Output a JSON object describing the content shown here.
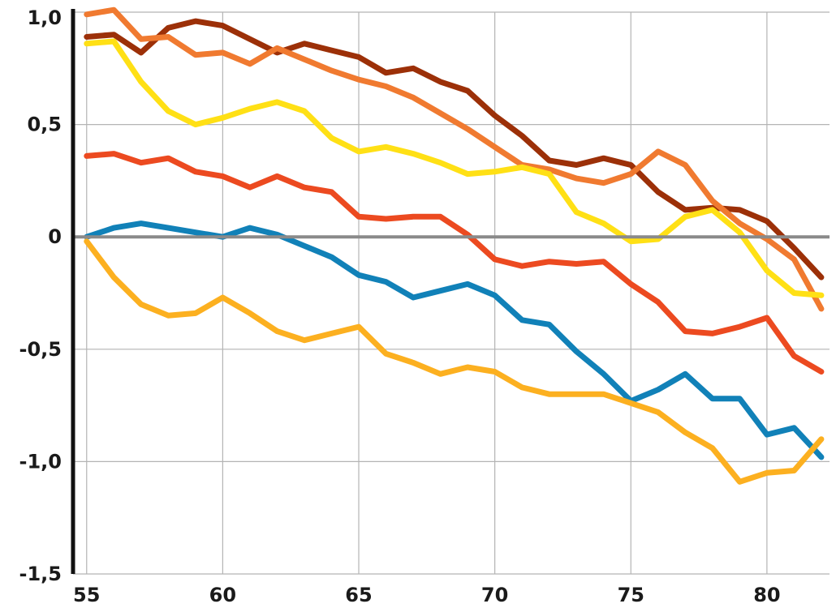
{
  "chart_data": {
    "type": "line",
    "title": "",
    "xlabel": "",
    "ylabel": "",
    "xlim": [
      54.5,
      82.3
    ],
    "ylim": [
      -1.5,
      1.0
    ],
    "grid": true,
    "legend": "none",
    "x_ticks": [
      55,
      60,
      65,
      70,
      75,
      80
    ],
    "x_tick_labels": [
      "55",
      "60",
      "65",
      "70",
      "75",
      "80"
    ],
    "y_ticks": [
      1.0,
      0.5,
      0,
      -0.5,
      -1.0,
      -1.5
    ],
    "y_tick_labels": [
      "1,0",
      "0,5",
      "0",
      "-0,5",
      "-1,0",
      "-1,5"
    ],
    "x": [
      55,
      56,
      57,
      58,
      59,
      60,
      61,
      62,
      63,
      64,
      65,
      66,
      67,
      68,
      69,
      70,
      71,
      72,
      73,
      74,
      75,
      76,
      77,
      78,
      79,
      80,
      81,
      82
    ],
    "series": [
      {
        "color": "#9c3008",
        "values": [
          0.89,
          0.9,
          0.82,
          0.93,
          0.96,
          0.94,
          0.88,
          0.82,
          0.86,
          0.83,
          0.8,
          0.73,
          0.75,
          0.69,
          0.65,
          0.54,
          0.45,
          0.34,
          0.32,
          0.35,
          0.32,
          0.2,
          0.12,
          0.13,
          0.12,
          0.07,
          -0.05,
          -0.18
        ]
      },
      {
        "color": "#f07a30",
        "values": [
          0.99,
          1.01,
          0.88,
          0.89,
          0.81,
          0.82,
          0.77,
          0.84,
          0.79,
          0.74,
          0.7,
          0.67,
          0.62,
          0.55,
          0.48,
          0.4,
          0.32,
          0.3,
          0.26,
          0.24,
          0.28,
          0.38,
          0.32,
          0.16,
          0.06,
          -0.01,
          -0.1,
          -0.32
        ]
      },
      {
        "color": "#ffe015",
        "values": [
          0.86,
          0.87,
          0.69,
          0.56,
          0.5,
          0.53,
          0.57,
          0.6,
          0.56,
          0.44,
          0.38,
          0.4,
          0.37,
          0.33,
          0.28,
          0.29,
          0.31,
          0.28,
          0.11,
          0.06,
          -0.02,
          -0.01,
          0.09,
          0.12,
          0.02,
          -0.15,
          -0.25,
          -0.26
        ]
      },
      {
        "color": "#ec4a20",
        "values": [
          0.36,
          0.37,
          0.33,
          0.35,
          0.29,
          0.27,
          0.22,
          0.27,
          0.22,
          0.2,
          0.09,
          0.08,
          0.09,
          0.09,
          0.01,
          -0.1,
          -0.13,
          -0.11,
          -0.12,
          -0.11,
          -0.21,
          -0.29,
          -0.42,
          -0.43,
          -0.4,
          -0.36,
          -0.53,
          -0.6
        ]
      },
      {
        "color": "#1181b8",
        "values": [
          0.0,
          0.04,
          0.06,
          0.04,
          0.02,
          0.0,
          0.04,
          0.01,
          -0.04,
          -0.09,
          -0.17,
          -0.2,
          -0.27,
          -0.24,
          -0.21,
          -0.26,
          -0.37,
          -0.39,
          -0.51,
          -0.61,
          -0.73,
          -0.68,
          -0.61,
          -0.72,
          -0.72,
          -0.88,
          -0.85,
          -0.98
        ]
      },
      {
        "color": "#fcb020",
        "values": [
          -0.02,
          -0.18,
          -0.3,
          -0.35,
          -0.34,
          -0.27,
          -0.34,
          -0.42,
          -0.46,
          -0.43,
          -0.4,
          -0.52,
          -0.56,
          -0.61,
          -0.58,
          -0.6,
          -0.67,
          -0.7,
          -0.7,
          -0.7,
          -0.74,
          -0.78,
          -0.87,
          -0.94,
          -1.09,
          -1.05,
          -1.04,
          -0.9
        ]
      }
    ]
  }
}
